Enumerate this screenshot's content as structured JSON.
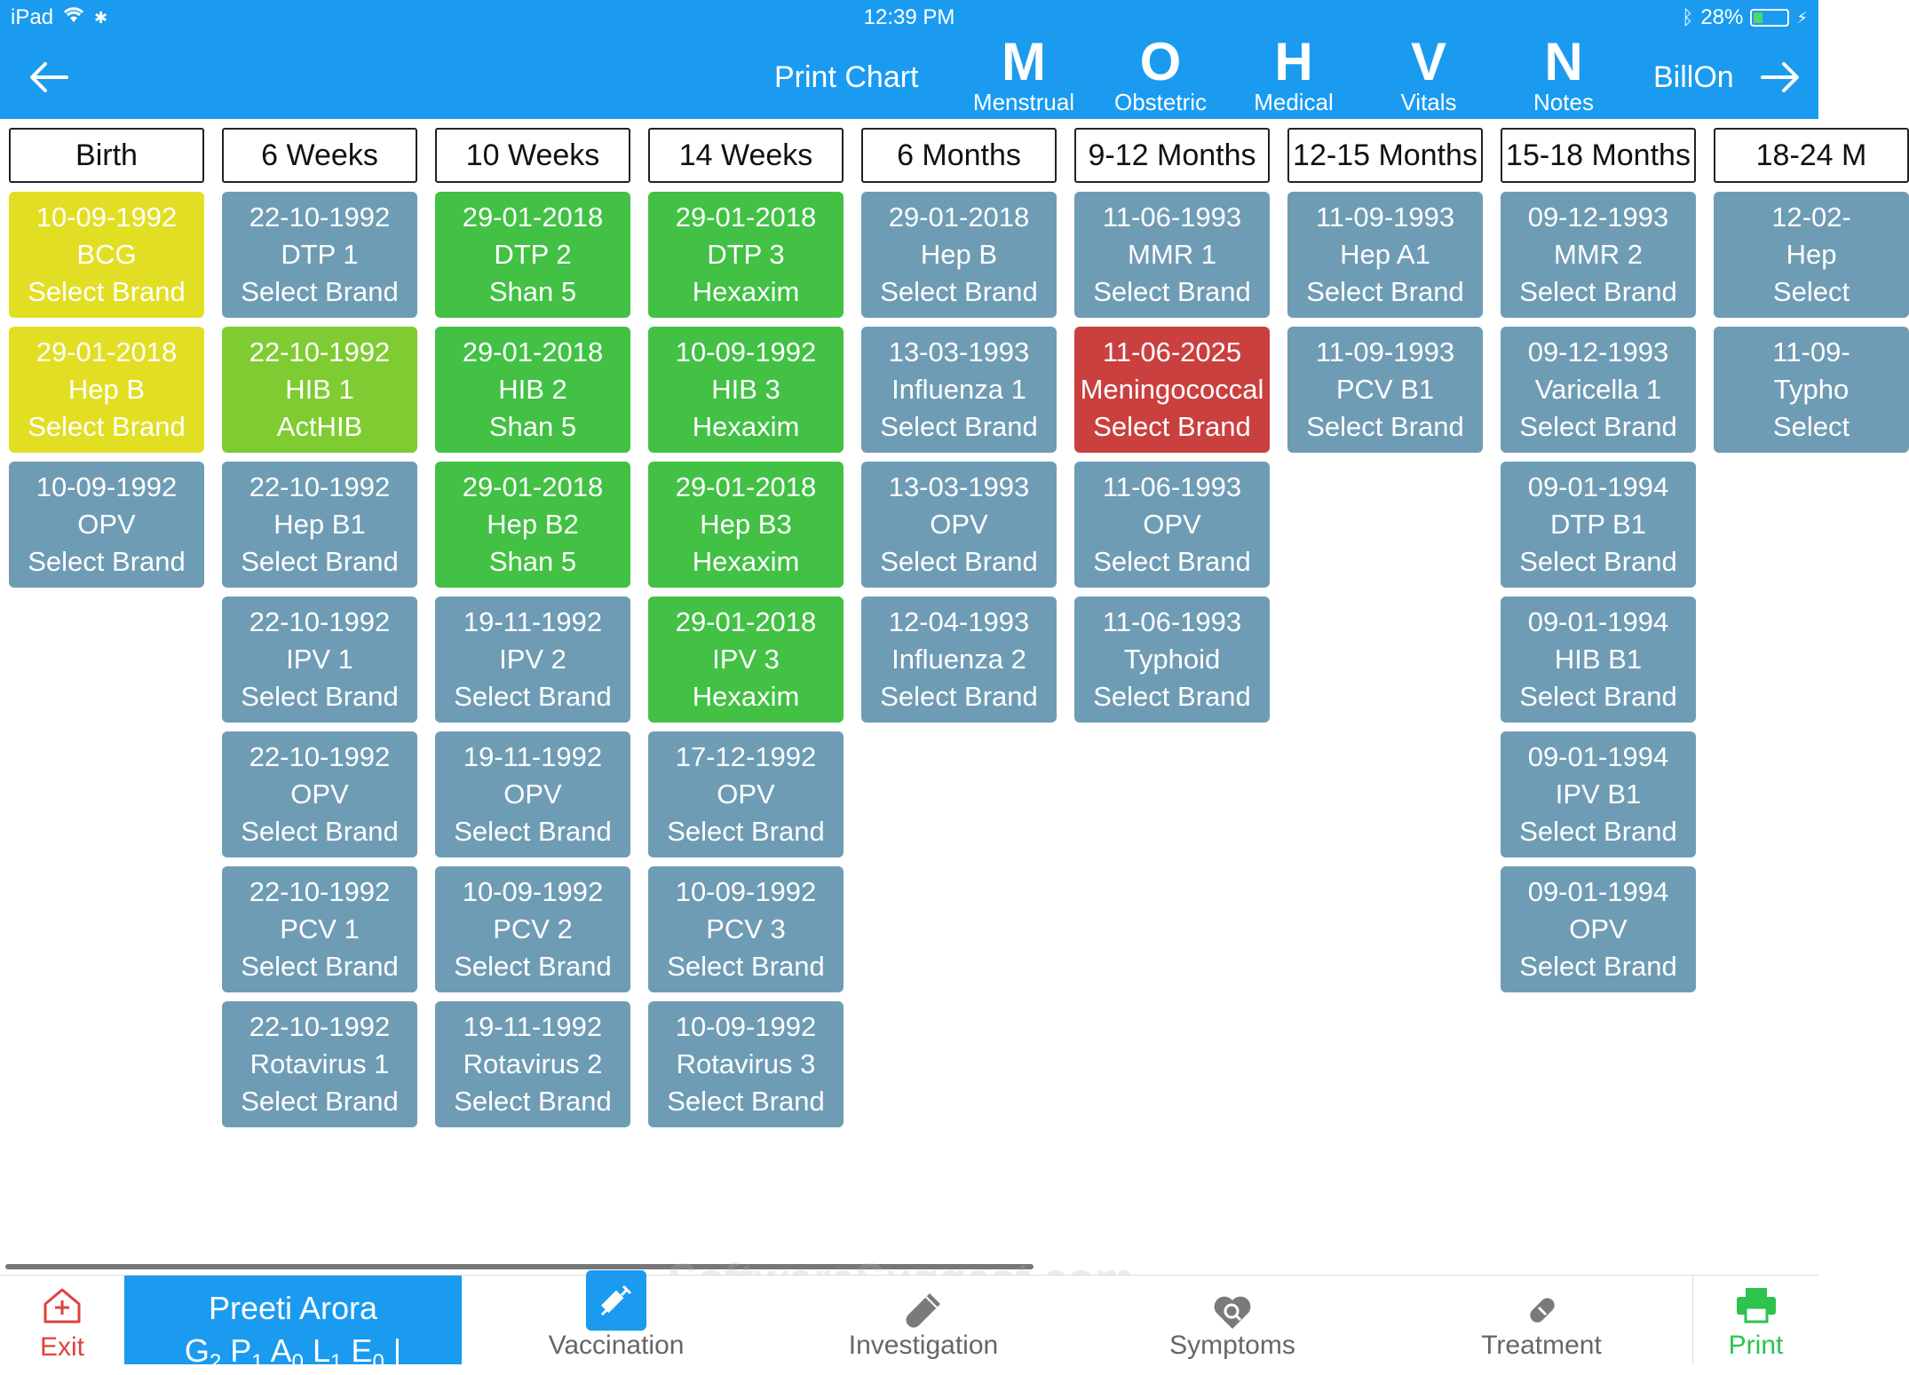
{
  "status": {
    "device": "iPad",
    "time": "12:39 PM",
    "battery": "28%",
    "battery_level": 0.28
  },
  "header": {
    "print_chart": "Print Chart",
    "nav": [
      {
        "letter": "M",
        "label": "Menstrual"
      },
      {
        "letter": "O",
        "label": "Obstetric"
      },
      {
        "letter": "H",
        "label": "Medical"
      },
      {
        "letter": "V",
        "label": "Vitals"
      },
      {
        "letter": "N",
        "label": "Notes"
      }
    ],
    "billon": "BillOn"
  },
  "colors": {
    "gray": "#6f9cb5",
    "green": "#42c145",
    "yellow": "#e2de24",
    "lime": "#7fcc32",
    "red": "#c9403f",
    "blue": "#1a9bf0"
  },
  "columns": [
    {
      "header": "Birth",
      "cards": [
        {
          "date": "10-09-1992",
          "vaccine": "BCG",
          "brand": "Select Brand",
          "status": "yellow"
        },
        {
          "date": "29-01-2018",
          "vaccine": "Hep B",
          "brand": "Select Brand",
          "status": "yellow"
        },
        {
          "date": "10-09-1992",
          "vaccine": "OPV",
          "brand": "Select Brand",
          "status": "gray"
        }
      ]
    },
    {
      "header": "6 Weeks",
      "cards": [
        {
          "date": "22-10-1992",
          "vaccine": "DTP 1",
          "brand": "Select Brand",
          "status": "gray"
        },
        {
          "date": "22-10-1992",
          "vaccine": "HIB 1",
          "brand": "ActHIB",
          "status": "lime"
        },
        {
          "date": "22-10-1992",
          "vaccine": "Hep B1",
          "brand": "Select Brand",
          "status": "gray"
        },
        {
          "date": "22-10-1992",
          "vaccine": "IPV 1",
          "brand": "Select Brand",
          "status": "gray"
        },
        {
          "date": "22-10-1992",
          "vaccine": "OPV",
          "brand": "Select Brand",
          "status": "gray"
        },
        {
          "date": "22-10-1992",
          "vaccine": "PCV 1",
          "brand": "Select Brand",
          "status": "gray"
        },
        {
          "date": "22-10-1992",
          "vaccine": "Rotavirus 1",
          "brand": "Select Brand",
          "status": "gray"
        }
      ]
    },
    {
      "header": "10 Weeks",
      "cards": [
        {
          "date": "29-01-2018",
          "vaccine": "DTP 2",
          "brand": "Shan 5",
          "status": "green"
        },
        {
          "date": "29-01-2018",
          "vaccine": "HIB 2",
          "brand": "Shan 5",
          "status": "green"
        },
        {
          "date": "29-01-2018",
          "vaccine": "Hep B2",
          "brand": "Shan 5",
          "status": "green"
        },
        {
          "date": "19-11-1992",
          "vaccine": "IPV 2",
          "brand": "Select Brand",
          "status": "gray"
        },
        {
          "date": "19-11-1992",
          "vaccine": "OPV",
          "brand": "Select Brand",
          "status": "gray"
        },
        {
          "date": "10-09-1992",
          "vaccine": "PCV 2",
          "brand": "Select Brand",
          "status": "gray"
        },
        {
          "date": "19-11-1992",
          "vaccine": "Rotavirus 2",
          "brand": "Select Brand",
          "status": "gray"
        }
      ]
    },
    {
      "header": "14 Weeks",
      "cards": [
        {
          "date": "29-01-2018",
          "vaccine": "DTP 3",
          "brand": "Hexaxim",
          "status": "green"
        },
        {
          "date": "10-09-1992",
          "vaccine": "HIB 3",
          "brand": "Hexaxim",
          "status": "green"
        },
        {
          "date": "29-01-2018",
          "vaccine": "Hep B3",
          "brand": "Hexaxim",
          "status": "green"
        },
        {
          "date": "29-01-2018",
          "vaccine": "IPV 3",
          "brand": "Hexaxim",
          "status": "green"
        },
        {
          "date": "17-12-1992",
          "vaccine": "OPV",
          "brand": "Select Brand",
          "status": "gray"
        },
        {
          "date": "10-09-1992",
          "vaccine": "PCV 3",
          "brand": "Select Brand",
          "status": "gray"
        },
        {
          "date": "10-09-1992",
          "vaccine": "Rotavirus 3",
          "brand": "Select Brand",
          "status": "gray"
        }
      ]
    },
    {
      "header": "6 Months",
      "cards": [
        {
          "date": "29-01-2018",
          "vaccine": "Hep B",
          "brand": "Select Brand",
          "status": "gray"
        },
        {
          "date": "13-03-1993",
          "vaccine": "Influenza 1",
          "brand": "Select Brand",
          "status": "gray"
        },
        {
          "date": "13-03-1993",
          "vaccine": "OPV",
          "brand": "Select Brand",
          "status": "gray"
        },
        {
          "date": "12-04-1993",
          "vaccine": "Influenza 2",
          "brand": "Select Brand",
          "status": "gray"
        }
      ]
    },
    {
      "header": "9-12 Months",
      "cards": [
        {
          "date": "11-06-1993",
          "vaccine": "MMR 1",
          "brand": "Select Brand",
          "status": "gray"
        },
        {
          "date": "11-06-2025",
          "vaccine": "Meningococcal",
          "brand": "Select Brand",
          "status": "red"
        },
        {
          "date": "11-06-1993",
          "vaccine": "OPV",
          "brand": "Select Brand",
          "status": "gray"
        },
        {
          "date": "11-06-1993",
          "vaccine": "Typhoid",
          "brand": "Select Brand",
          "status": "gray"
        }
      ]
    },
    {
      "header": "12-15 Months",
      "cards": [
        {
          "date": "11-09-1993",
          "vaccine": "Hep A1",
          "brand": "Select Brand",
          "status": "gray"
        },
        {
          "date": "11-09-1993",
          "vaccine": "PCV B1",
          "brand": "Select Brand",
          "status": "gray"
        }
      ]
    },
    {
      "header": "15-18 Months",
      "cards": [
        {
          "date": "09-12-1993",
          "vaccine": "MMR 2",
          "brand": "Select Brand",
          "status": "gray"
        },
        {
          "date": "09-12-1993",
          "vaccine": "Varicella 1",
          "brand": "Select Brand",
          "status": "gray"
        },
        {
          "date": "09-01-1994",
          "vaccine": "DTP B1",
          "brand": "Select Brand",
          "status": "gray"
        },
        {
          "date": "09-01-1994",
          "vaccine": "HIB B1",
          "brand": "Select Brand",
          "status": "gray"
        },
        {
          "date": "09-01-1994",
          "vaccine": "IPV B1",
          "brand": "Select Brand",
          "status": "gray"
        },
        {
          "date": "09-01-1994",
          "vaccine": "OPV",
          "brand": "Select Brand",
          "status": "gray"
        }
      ]
    },
    {
      "header": "18-24 M",
      "cards": [
        {
          "date": "12-02-",
          "vaccine": "Hep",
          "brand": "Select",
          "status": "gray"
        },
        {
          "date": "11-09-",
          "vaccine": "Typho",
          "brand": "Select",
          "status": "gray"
        }
      ]
    }
  ],
  "bottom": {
    "exit": "Exit",
    "patient_name": "Preeti  Arora",
    "gpal": [
      {
        "letter": "G",
        "num": "2"
      },
      {
        "letter": "P",
        "num": "1"
      },
      {
        "letter": "A",
        "num": "0"
      },
      {
        "letter": "L",
        "num": "1"
      },
      {
        "letter": "E",
        "num": "0"
      }
    ],
    "tabs": [
      "Vaccination",
      "Investigation",
      "Symptoms",
      "Treatment"
    ],
    "print": "Print",
    "watermark": "SoftwareSuggest.com"
  }
}
